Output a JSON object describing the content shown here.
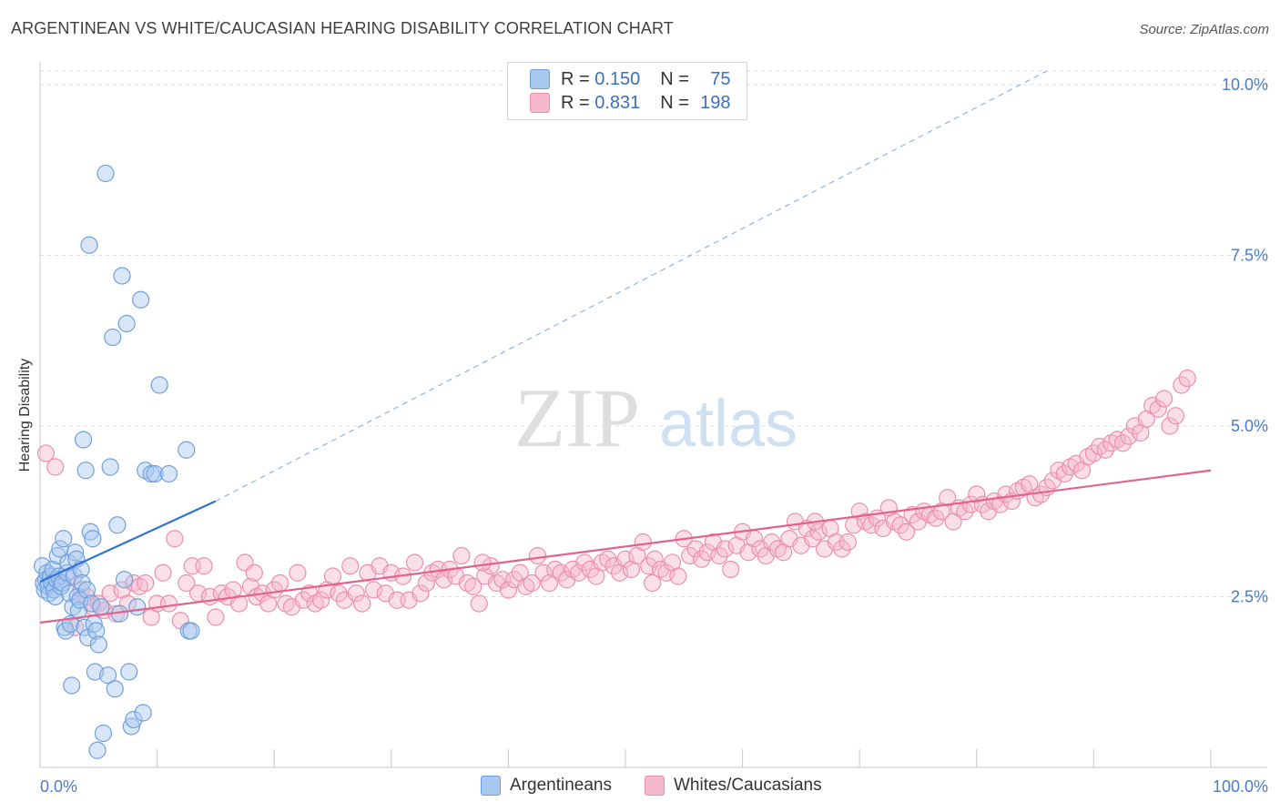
{
  "title": "ARGENTINEAN VS WHITE/CAUCASIAN HEARING DISABILITY CORRELATION CHART",
  "source": "Source: ZipAtlas.com",
  "watermark": {
    "zip": "ZIP",
    "atlas": "atlas"
  },
  "colors": {
    "blue_fill": "#a9c8ef",
    "blue_stroke": "#6e9fdc",
    "blue_line": "#2f74d0",
    "pink_fill": "#f5b7cb",
    "pink_stroke": "#ea8fad",
    "pink_line": "#e2628e",
    "axis_label": "#4a7cc8",
    "grid": "#dddddd"
  },
  "legend": {
    "rows": [
      {
        "r_label": "R =",
        "r_value": "0.150",
        "n_label": "N =",
        "n_value": "75",
        "color": "#a9c8ef"
      },
      {
        "r_label": "R =",
        "r_value": "0.831",
        "n_label": "N =",
        "n_value": "198",
        "color": "#f5b7cb"
      }
    ]
  },
  "bottom_legend": [
    "Argentineans",
    "Whites/Caucasians"
  ],
  "chart_data": {
    "type": "scatter",
    "title": "ARGENTINEAN VS WHITE/CAUCASIAN HEARING DISABILITY CORRELATION CHART",
    "xlabel": "",
    "ylabel": "Hearing Disability",
    "xlim": [
      0,
      100
    ],
    "ylim": [
      0,
      10.2
    ],
    "x_tick_labels": [
      "0.0%",
      "100.0%"
    ],
    "y_ticks": [
      2.5,
      5.0,
      7.5,
      10.0
    ],
    "y_tick_labels": [
      "2.5%",
      "5.0%",
      "7.5%",
      "10.0%"
    ],
    "grid": "horizontal dashed",
    "series": [
      {
        "name": "Argentineans",
        "color": "#a9c8ef",
        "trend": {
          "x": [
            0,
            15
          ],
          "y": [
            2.72,
            3.9
          ],
          "dashed_extension_to": [
            86,
            10.2
          ]
        },
        "points": [
          [
            0.2,
            2.95
          ],
          [
            0.3,
            2.7
          ],
          [
            0.4,
            2.6
          ],
          [
            0.5,
            2.75
          ],
          [
            0.6,
            2.85
          ],
          [
            0.7,
            2.65
          ],
          [
            0.8,
            2.55
          ],
          [
            0.9,
            2.8
          ],
          [
            1.0,
            2.7
          ],
          [
            1.1,
            2.9
          ],
          [
            1.2,
            2.6
          ],
          [
            1.3,
            2.5
          ],
          [
            1.4,
            2.75
          ],
          [
            1.5,
            3.1
          ],
          [
            1.6,
            2.8
          ],
          [
            1.7,
            3.2
          ],
          [
            1.8,
            2.65
          ],
          [
            1.9,
            2.7
          ],
          [
            2.0,
            3.35
          ],
          [
            2.1,
            2.05
          ],
          [
            2.2,
            2.0
          ],
          [
            2.3,
            2.85
          ],
          [
            2.4,
            3.0
          ],
          [
            2.5,
            2.55
          ],
          [
            2.6,
            2.1
          ],
          [
            2.7,
            1.2
          ],
          [
            2.8,
            2.35
          ],
          [
            2.9,
            2.8
          ],
          [
            3.0,
            3.15
          ],
          [
            3.1,
            3.05
          ],
          [
            3.2,
            2.5
          ],
          [
            3.3,
            2.3
          ],
          [
            3.4,
            2.45
          ],
          [
            3.5,
            2.9
          ],
          [
            3.6,
            2.7
          ],
          [
            3.7,
            4.8
          ],
          [
            3.8,
            2.05
          ],
          [
            3.9,
            4.35
          ],
          [
            4.0,
            2.6
          ],
          [
            4.1,
            1.9
          ],
          [
            4.2,
            7.65
          ],
          [
            4.3,
            3.45
          ],
          [
            4.4,
            2.4
          ],
          [
            4.5,
            3.35
          ],
          [
            4.6,
            2.1
          ],
          [
            4.7,
            1.4
          ],
          [
            4.8,
            2.0
          ],
          [
            4.9,
            0.25
          ],
          [
            5.0,
            1.8
          ],
          [
            5.2,
            2.35
          ],
          [
            5.4,
            0.5
          ],
          [
            5.6,
            8.7
          ],
          [
            5.8,
            1.35
          ],
          [
            6.0,
            4.4
          ],
          [
            6.2,
            6.3
          ],
          [
            6.4,
            1.15
          ],
          [
            6.6,
            3.55
          ],
          [
            6.8,
            2.25
          ],
          [
            7.0,
            7.2
          ],
          [
            7.2,
            2.75
          ],
          [
            7.4,
            6.5
          ],
          [
            7.6,
            1.4
          ],
          [
            7.8,
            0.6
          ],
          [
            8.0,
            0.7
          ],
          [
            8.3,
            2.35
          ],
          [
            8.6,
            6.85
          ],
          [
            8.8,
            0.8
          ],
          [
            9.0,
            4.35
          ],
          [
            9.5,
            4.3
          ],
          [
            9.8,
            4.3
          ],
          [
            10.2,
            5.6
          ],
          [
            11.0,
            4.3
          ],
          [
            12.5,
            4.65
          ],
          [
            12.7,
            2.0
          ],
          [
            12.9,
            2.0
          ]
        ]
      },
      {
        "name": "Whites/Caucasians",
        "color": "#f5b7cb",
        "trend": {
          "x": [
            0,
            100
          ],
          "y": [
            2.12,
            4.35
          ]
        },
        "points": [
          [
            0.5,
            4.6
          ],
          [
            1.3,
            4.4
          ],
          [
            2.5,
            2.8
          ],
          [
            3.0,
            2.05
          ],
          [
            3.5,
            2.6
          ],
          [
            4.0,
            2.5
          ],
          [
            4.5,
            2.35
          ],
          [
            5.0,
            2.4
          ],
          [
            5.5,
            2.3
          ],
          [
            6.0,
            2.55
          ],
          [
            6.5,
            2.25
          ],
          [
            7.0,
            2.6
          ],
          [
            7.5,
            2.4
          ],
          [
            8.0,
            2.7
          ],
          [
            8.5,
            2.65
          ],
          [
            9.0,
            2.7
          ],
          [
            9.5,
            2.2
          ],
          [
            10.0,
            2.4
          ],
          [
            10.5,
            2.85
          ],
          [
            11.0,
            2.4
          ],
          [
            11.5,
            3.35
          ],
          [
            12.0,
            2.15
          ],
          [
            12.5,
            2.7
          ],
          [
            13.0,
            2.95
          ],
          [
            13.5,
            2.55
          ],
          [
            14.0,
            2.95
          ],
          [
            14.5,
            2.5
          ],
          [
            15.0,
            2.2
          ],
          [
            15.5,
            2.55
          ],
          [
            16.0,
            2.5
          ],
          [
            16.5,
            2.6
          ],
          [
            17.0,
            2.4
          ],
          [
            17.5,
            3.0
          ],
          [
            18.0,
            2.65
          ],
          [
            18.5,
            2.5
          ],
          [
            19.0,
            2.55
          ],
          [
            19.5,
            2.4
          ],
          [
            20.0,
            2.6
          ],
          [
            20.5,
            2.7
          ],
          [
            21.0,
            2.4
          ],
          [
            21.5,
            2.35
          ],
          [
            22.0,
            2.85
          ],
          [
            22.5,
            2.45
          ],
          [
            23.0,
            2.55
          ],
          [
            23.5,
            2.4
          ],
          [
            24.0,
            2.45
          ],
          [
            24.5,
            2.6
          ],
          [
            25.0,
            2.8
          ],
          [
            25.5,
            2.55
          ],
          [
            26.0,
            2.45
          ],
          [
            26.5,
            2.95
          ],
          [
            27.0,
            2.55
          ],
          [
            27.5,
            2.4
          ],
          [
            28.0,
            2.85
          ],
          [
            28.5,
            2.6
          ],
          [
            29.0,
            2.95
          ],
          [
            29.5,
            2.55
          ],
          [
            30.0,
            2.85
          ],
          [
            30.5,
            2.45
          ],
          [
            31.0,
            2.8
          ],
          [
            31.5,
            2.45
          ],
          [
            32.0,
            3.0
          ],
          [
            32.5,
            2.55
          ],
          [
            33.0,
            2.7
          ],
          [
            33.5,
            2.85
          ],
          [
            34.0,
            2.9
          ],
          [
            34.5,
            2.75
          ],
          [
            35.0,
            2.9
          ],
          [
            35.5,
            2.8
          ],
          [
            36.0,
            3.1
          ],
          [
            36.5,
            2.7
          ],
          [
            37.0,
            2.65
          ],
          [
            37.5,
            2.4
          ],
          [
            38.0,
            2.8
          ],
          [
            38.5,
            2.95
          ],
          [
            39.0,
            2.7
          ],
          [
            39.5,
            2.75
          ],
          [
            40.0,
            2.6
          ],
          [
            40.5,
            2.75
          ],
          [
            41.0,
            2.85
          ],
          [
            41.5,
            2.65
          ],
          [
            42.0,
            2.7
          ],
          [
            42.5,
            3.1
          ],
          [
            43.0,
            2.85
          ],
          [
            43.5,
            2.7
          ],
          [
            44.0,
            2.9
          ],
          [
            44.5,
            2.85
          ],
          [
            45.0,
            2.75
          ],
          [
            45.5,
            2.9
          ],
          [
            46.0,
            2.85
          ],
          [
            46.5,
            3.0
          ],
          [
            47.0,
            2.9
          ],
          [
            47.5,
            2.8
          ],
          [
            48.0,
            3.0
          ],
          [
            48.5,
            3.05
          ],
          [
            49.0,
            2.95
          ],
          [
            49.5,
            2.85
          ],
          [
            50.0,
            3.05
          ],
          [
            50.5,
            2.9
          ],
          [
            51.0,
            3.1
          ],
          [
            51.5,
            3.3
          ],
          [
            52.0,
            2.95
          ],
          [
            52.5,
            3.05
          ],
          [
            53.0,
            2.9
          ],
          [
            53.5,
            2.85
          ],
          [
            54.0,
            3.0
          ],
          [
            54.5,
            2.8
          ],
          [
            55.0,
            3.35
          ],
          [
            55.5,
            3.1
          ],
          [
            56.0,
            3.2
          ],
          [
            56.5,
            3.05
          ],
          [
            57.0,
            3.15
          ],
          [
            57.5,
            3.3
          ],
          [
            58.0,
            3.1
          ],
          [
            58.5,
            3.2
          ],
          [
            59.0,
            2.9
          ],
          [
            59.5,
            3.25
          ],
          [
            60.0,
            3.45
          ],
          [
            60.5,
            3.15
          ],
          [
            61.0,
            3.35
          ],
          [
            61.5,
            3.2
          ],
          [
            62.0,
            3.1
          ],
          [
            62.5,
            3.3
          ],
          [
            63.0,
            3.2
          ],
          [
            63.5,
            3.15
          ],
          [
            64.0,
            3.35
          ],
          [
            64.5,
            3.6
          ],
          [
            65.0,
            3.25
          ],
          [
            65.5,
            3.5
          ],
          [
            66.0,
            3.35
          ],
          [
            66.5,
            3.45
          ],
          [
            67.0,
            3.2
          ],
          [
            67.5,
            3.5
          ],
          [
            68.0,
            3.3
          ],
          [
            68.5,
            3.2
          ],
          [
            69.0,
            3.3
          ],
          [
            69.5,
            3.55
          ],
          [
            70.0,
            3.75
          ],
          [
            70.5,
            3.6
          ],
          [
            71.0,
            3.55
          ],
          [
            71.5,
            3.65
          ],
          [
            72.0,
            3.5
          ],
          [
            72.5,
            3.8
          ],
          [
            73.0,
            3.6
          ],
          [
            73.5,
            3.55
          ],
          [
            74.0,
            3.45
          ],
          [
            74.5,
            3.7
          ],
          [
            75.0,
            3.6
          ],
          [
            75.5,
            3.75
          ],
          [
            76.0,
            3.7
          ],
          [
            76.5,
            3.65
          ],
          [
            77.0,
            3.75
          ],
          [
            77.5,
            3.95
          ],
          [
            78.0,
            3.6
          ],
          [
            78.5,
            3.8
          ],
          [
            79.0,
            3.75
          ],
          [
            79.5,
            3.85
          ],
          [
            80.0,
            4.0
          ],
          [
            80.5,
            3.85
          ],
          [
            81.0,
            3.75
          ],
          [
            81.5,
            3.9
          ],
          [
            82.0,
            3.85
          ],
          [
            82.5,
            4.0
          ],
          [
            83.0,
            3.9
          ],
          [
            83.5,
            4.05
          ],
          [
            84.0,
            4.1
          ],
          [
            84.5,
            4.15
          ],
          [
            85.0,
            3.95
          ],
          [
            85.5,
            4.0
          ],
          [
            86.0,
            4.1
          ],
          [
            86.5,
            4.2
          ],
          [
            87.0,
            4.35
          ],
          [
            87.5,
            4.3
          ],
          [
            88.0,
            4.4
          ],
          [
            88.5,
            4.45
          ],
          [
            89.0,
            4.35
          ],
          [
            89.5,
            4.55
          ],
          [
            90.0,
            4.6
          ],
          [
            90.5,
            4.7
          ],
          [
            91.0,
            4.65
          ],
          [
            91.5,
            4.75
          ],
          [
            92.0,
            4.8
          ],
          [
            92.5,
            4.75
          ],
          [
            93.0,
            4.85
          ],
          [
            93.5,
            5.0
          ],
          [
            94.0,
            4.9
          ],
          [
            94.5,
            5.1
          ],
          [
            95.0,
            5.3
          ],
          [
            95.5,
            5.25
          ],
          [
            96.0,
            5.4
          ],
          [
            96.5,
            5.0
          ],
          [
            97.0,
            5.15
          ],
          [
            97.5,
            5.6
          ],
          [
            98.0,
            5.7
          ],
          [
            18.3,
            2.85
          ],
          [
            37.8,
            3.0
          ],
          [
            52.3,
            2.7
          ],
          [
            66.2,
            3.6
          ]
        ]
      }
    ]
  }
}
